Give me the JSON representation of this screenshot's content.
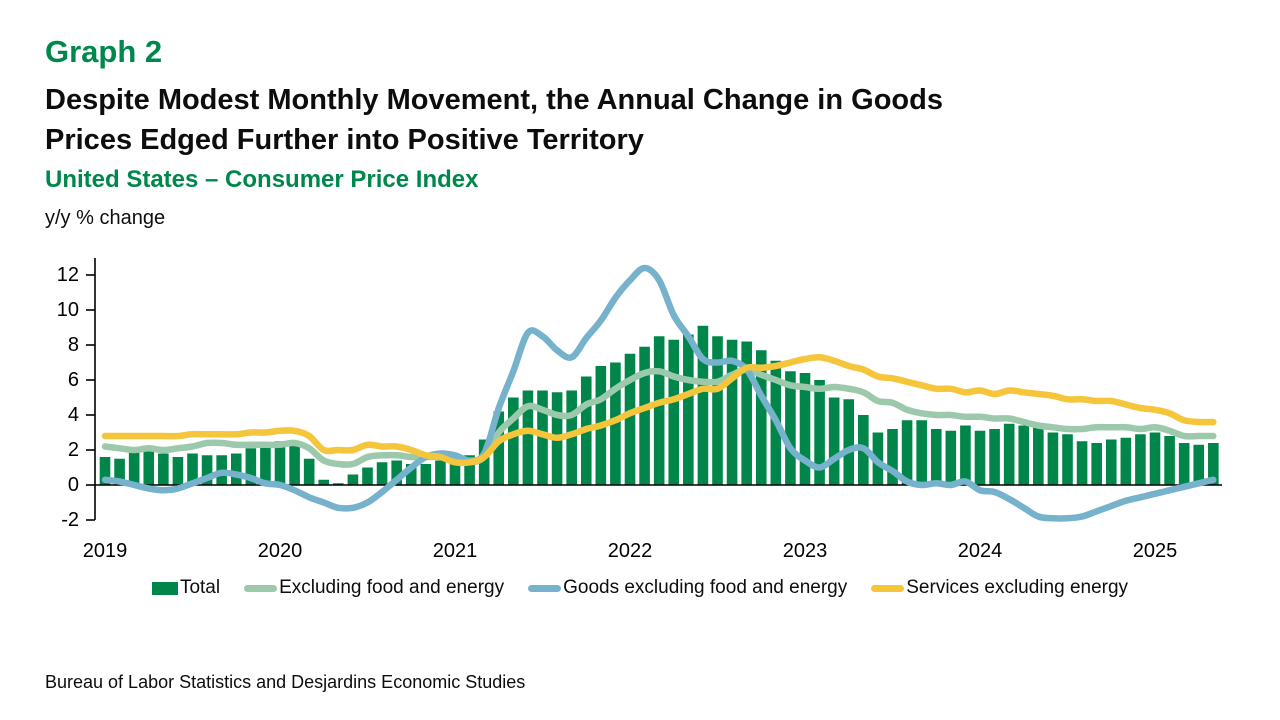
{
  "header": {
    "graph_label": "Graph 2",
    "headline": "Despite Modest Monthly Movement, the Annual Change in Goods\nPrices Edged Further into Positive Territory",
    "subtitle": "United States – Consumer Price Index",
    "units_label": "y/y % change"
  },
  "footer": {
    "source": "Bureau of Labor Statistics and Desjardins Economic Studies"
  },
  "colors": {
    "brand_green": "#00874B",
    "bar_green": "#00854A",
    "core_green": "#9CC9AC",
    "goods_blue": "#76B2CB",
    "services_yellow": "#F5C53C",
    "axis_black": "#000000"
  },
  "chart_data": {
    "type": "bar",
    "title": "United States – Consumer Price Index",
    "ylabel": "y/y % change",
    "ylim": [
      -2,
      13
    ],
    "yticks": [
      -2,
      0,
      2,
      4,
      6,
      8,
      10,
      12
    ],
    "grid": false,
    "legend_position": "bottom",
    "x_start": "2019-01",
    "x_end": "2025-05",
    "x_tick_labels": [
      "2019",
      "2020",
      "2021",
      "2022",
      "2023",
      "2024",
      "2025"
    ],
    "series": [
      {
        "name": "Total",
        "type": "bar",
        "color_key": "bar_green",
        "values": [
          1.6,
          1.5,
          1.9,
          2.0,
          1.8,
          1.6,
          1.8,
          1.7,
          1.7,
          1.8,
          2.1,
          2.3,
          2.5,
          2.3,
          1.5,
          0.3,
          0.1,
          0.6,
          1.0,
          1.3,
          1.4,
          1.2,
          1.2,
          1.4,
          1.4,
          1.7,
          2.6,
          4.2,
          5.0,
          5.4,
          5.4,
          5.3,
          5.4,
          6.2,
          6.8,
          7.0,
          7.5,
          7.9,
          8.5,
          8.3,
          8.6,
          9.1,
          8.5,
          8.3,
          8.2,
          7.7,
          7.1,
          6.5,
          6.4,
          6.0,
          5.0,
          4.9,
          4.0,
          3.0,
          3.2,
          3.7,
          3.7,
          3.2,
          3.1,
          3.4,
          3.1,
          3.2,
          3.5,
          3.4,
          3.3,
          3.0,
          2.9,
          2.5,
          2.4,
          2.6,
          2.7,
          2.9,
          3.0,
          2.8,
          2.4,
          2.3,
          2.4
        ]
      },
      {
        "name": "Excluding food and energy",
        "type": "line",
        "color_key": "core_green",
        "values": [
          2.2,
          2.1,
          2.0,
          2.1,
          2.0,
          2.1,
          2.2,
          2.4,
          2.4,
          2.3,
          2.3,
          2.3,
          2.3,
          2.4,
          2.1,
          1.4,
          1.2,
          1.2,
          1.6,
          1.7,
          1.7,
          1.6,
          1.6,
          1.6,
          1.4,
          1.3,
          1.6,
          3.0,
          3.8,
          4.5,
          4.3,
          4.0,
          4.0,
          4.6,
          4.9,
          5.5,
          6.0,
          6.4,
          6.5,
          6.2,
          6.0,
          5.9,
          5.9,
          6.3,
          6.6,
          6.3,
          6.0,
          5.7,
          5.6,
          5.5,
          5.6,
          5.5,
          5.3,
          4.8,
          4.7,
          4.3,
          4.1,
          4.0,
          4.0,
          3.9,
          3.9,
          3.8,
          3.8,
          3.6,
          3.4,
          3.3,
          3.2,
          3.2,
          3.3,
          3.3,
          3.3,
          3.2,
          3.3,
          3.1,
          2.8,
          2.8,
          2.8
        ]
      },
      {
        "name": "Goods excluding food and energy",
        "type": "line",
        "color_key": "goods_blue",
        "values": [
          0.3,
          0.2,
          0.0,
          -0.2,
          -0.3,
          -0.2,
          0.1,
          0.4,
          0.7,
          0.6,
          0.4,
          0.1,
          0.0,
          -0.3,
          -0.7,
          -1.0,
          -1.3,
          -1.3,
          -1.0,
          -0.4,
          0.3,
          1.0,
          1.6,
          1.8,
          1.7,
          1.4,
          1.8,
          4.4,
          6.5,
          8.7,
          8.5,
          7.7,
          7.3,
          8.4,
          9.4,
          10.7,
          11.7,
          12.4,
          11.7,
          9.7,
          8.5,
          7.2,
          7.0,
          7.1,
          6.6,
          5.1,
          3.7,
          2.1,
          1.4,
          1.0,
          1.5,
          2.0,
          2.1,
          1.3,
          0.8,
          0.2,
          0.0,
          0.1,
          0.0,
          0.2,
          -0.3,
          -0.4,
          -0.8,
          -1.3,
          -1.8,
          -1.9,
          -1.9,
          -1.8,
          -1.5,
          -1.2,
          -0.9,
          -0.7,
          -0.5,
          -0.3,
          -0.1,
          0.1,
          0.3
        ]
      },
      {
        "name": "Services excluding energy",
        "type": "line",
        "color_key": "services_yellow",
        "values": [
          2.8,
          2.8,
          2.8,
          2.8,
          2.8,
          2.8,
          2.9,
          2.9,
          2.9,
          2.9,
          3.0,
          3.0,
          3.1,
          3.1,
          2.8,
          2.0,
          2.0,
          2.0,
          2.3,
          2.2,
          2.2,
          2.0,
          1.7,
          1.6,
          1.3,
          1.3,
          1.6,
          2.5,
          2.9,
          3.1,
          2.9,
          2.7,
          2.9,
          3.2,
          3.4,
          3.7,
          4.1,
          4.4,
          4.7,
          4.9,
          5.2,
          5.5,
          5.5,
          6.1,
          6.7,
          6.7,
          6.8,
          7.0,
          7.2,
          7.3,
          7.1,
          6.8,
          6.6,
          6.2,
          6.1,
          5.9,
          5.7,
          5.5,
          5.5,
          5.3,
          5.4,
          5.2,
          5.4,
          5.3,
          5.2,
          5.1,
          4.9,
          4.9,
          4.8,
          4.8,
          4.6,
          4.4,
          4.3,
          4.1,
          3.7,
          3.6,
          3.6
        ]
      }
    ]
  }
}
